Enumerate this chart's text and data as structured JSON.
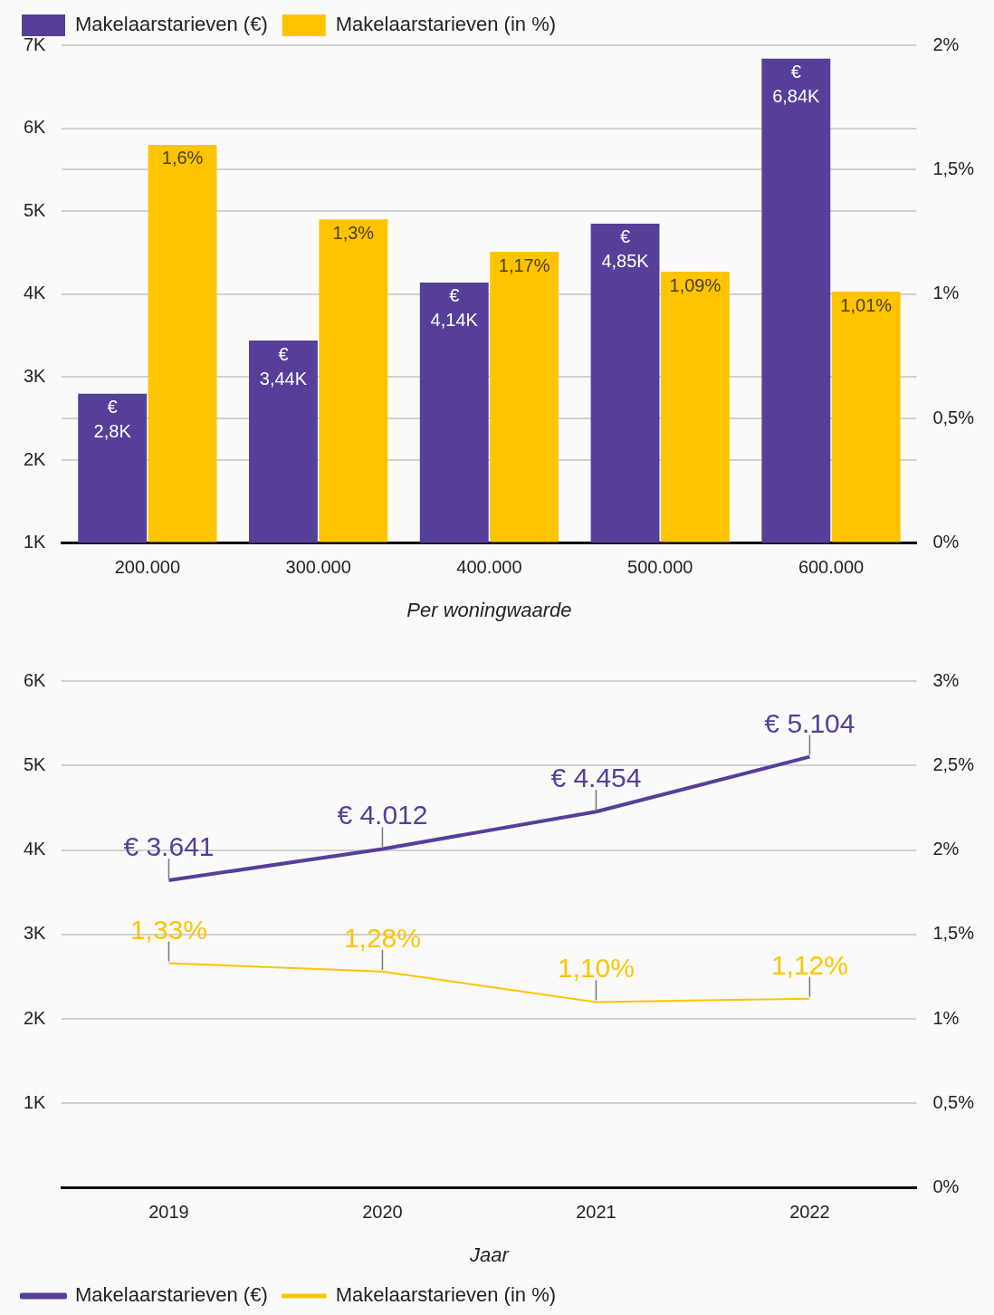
{
  "chart_data": [
    {
      "type": "bar",
      "xlabel": "Per woningwaarde",
      "categories": [
        "200.000",
        "300.000",
        "400.000",
        "500.000",
        "600.000"
      ],
      "series": [
        {
          "name": "Makelaarstarieven (€)",
          "color": "#553f99",
          "values": [
            2800,
            3440,
            4140,
            4850,
            6840
          ],
          "value_labels": [
            "€ 2,8K",
            "€ 3,44K",
            "€ 4,14K",
            "€ 4,85K",
            "€ 6,84K"
          ]
        },
        {
          "name": "Makelaarstarieven (in %)",
          "color": "#ffc400",
          "axis": "y2",
          "values": [
            1.6,
            1.3,
            1.17,
            1.09,
            1.01
          ],
          "value_labels": [
            "1,6%",
            "1,3%",
            "1,17%",
            "1,09%",
            "1,01%"
          ]
        }
      ],
      "ylim": [
        1000,
        7000
      ],
      "yticks": [
        {
          "value": 1000,
          "label": "1K"
        },
        {
          "value": 2000,
          "label": "2K"
        },
        {
          "value": 3000,
          "label": "3K"
        },
        {
          "value": 4000,
          "label": "4K"
        },
        {
          "value": 5000,
          "label": "5K"
        },
        {
          "value": 6000,
          "label": "6K"
        },
        {
          "value": 7000,
          "label": "7K"
        }
      ],
      "y2lim": [
        0,
        2
      ],
      "y2ticks": [
        {
          "value": 0,
          "label": "0%"
        },
        {
          "value": 0.5,
          "label": "0,5%"
        },
        {
          "value": 1,
          "label": "1%"
        },
        {
          "value": 1.5,
          "label": "1,5%"
        },
        {
          "value": 2,
          "label": "2%"
        }
      ],
      "grid": "y",
      "legend": "top left"
    },
    {
      "type": "line",
      "xlabel": "Jaar",
      "categories": [
        "2019",
        "2020",
        "2021",
        "2022"
      ],
      "series": [
        {
          "name": "Makelaarstarieven (€)",
          "color": "#553f99",
          "values": [
            3641,
            4012,
            4454,
            5104
          ],
          "value_labels": [
            "€ 3.641",
            "€ 4.012",
            "€ 4.454",
            "€ 5.104"
          ]
        },
        {
          "name": "Makelaarstarieven (in %)",
          "color": "#ffc400",
          "axis": "y2",
          "values": [
            1.33,
            1.28,
            1.1,
            1.12
          ],
          "value_labels": [
            "1,33%",
            "1,28%",
            "1,10%",
            "1,12%"
          ]
        }
      ],
      "ylim": [
        0,
        6000
      ],
      "yticks": [
        {
          "value": 0,
          "label": null
        },
        {
          "value": 1000,
          "label": "1K"
        },
        {
          "value": 2000,
          "label": "2K"
        },
        {
          "value": 3000,
          "label": "3K"
        },
        {
          "value": 4000,
          "label": "4K"
        },
        {
          "value": 5000,
          "label": "5K"
        },
        {
          "value": 6000,
          "label": "6K"
        }
      ],
      "y2lim": [
        0,
        3
      ],
      "y2ticks": [
        {
          "value": 0,
          "label": "0%"
        },
        {
          "value": 0.5,
          "label": "0,5%"
        },
        {
          "value": 1,
          "label": "1%"
        },
        {
          "value": 1.5,
          "label": "1,5%"
        },
        {
          "value": 2,
          "label": "2%"
        },
        {
          "value": 2.5,
          "label": "2,5%"
        },
        {
          "value": 3,
          "label": "3%"
        }
      ],
      "grid": "y",
      "legend": "bottom left",
      "marker": "none"
    }
  ]
}
